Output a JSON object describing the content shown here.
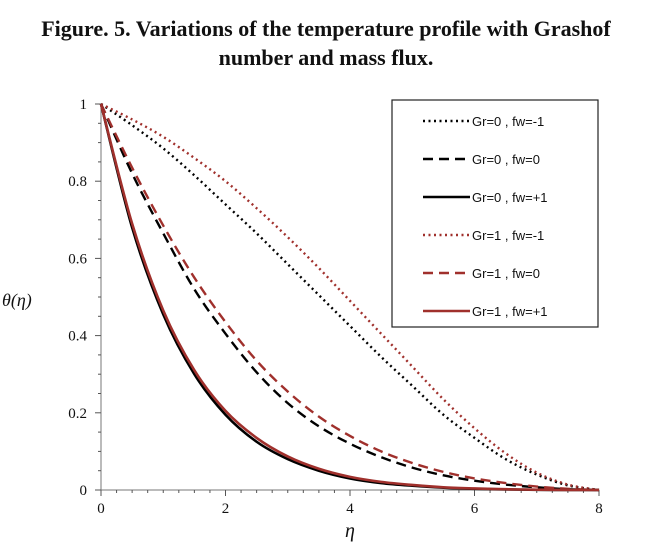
{
  "figure": {
    "caption_line1": "Figure. 5. Variations of the temperature profile with Grashof",
    "caption_line2": "number and mass flux."
  },
  "chart_data": {
    "type": "line",
    "title": "Figure. 5. Variations of the temperature profile with Grashof number and mass flux.",
    "xlabel": "η",
    "ylabel": "θ(η)",
    "xlim": [
      0,
      8
    ],
    "ylim": [
      0,
      1
    ],
    "x_ticks": [
      0,
      2,
      4,
      6,
      8
    ],
    "y_ticks": [
      0,
      0.2,
      0.4,
      0.6,
      0.8,
      1
    ],
    "grid": false,
    "legend_position": "top-right",
    "x": [
      0,
      0.5,
      1,
      1.5,
      2,
      2.5,
      3,
      3.5,
      4,
      4.5,
      5,
      5.5,
      6,
      6.5,
      7,
      7.5,
      8
    ],
    "series": [
      {
        "name": "Gr=0 , fw=-1",
        "color": "#000000",
        "dash": "dotted",
        "values": [
          1,
          0.945,
          0.885,
          0.815,
          0.74,
          0.665,
          0.585,
          0.505,
          0.425,
          0.345,
          0.27,
          0.195,
          0.135,
          0.08,
          0.04,
          0.012,
          0
        ]
      },
      {
        "name": "Gr=0 , fw=0",
        "color": "#000000",
        "dash": "dashed",
        "values": [
          1,
          0.82,
          0.665,
          0.52,
          0.405,
          0.305,
          0.225,
          0.165,
          0.12,
          0.085,
          0.058,
          0.038,
          0.024,
          0.014,
          0.007,
          0.002,
          0
        ]
      },
      {
        "name": "Gr=0 , fw=+1",
        "color": "#000000",
        "dash": "solid",
        "values": [
          1,
          0.68,
          0.455,
          0.3,
          0.195,
          0.125,
          0.08,
          0.05,
          0.03,
          0.018,
          0.011,
          0.006,
          0.003,
          0.0015,
          0.0005,
          0.0001,
          0
        ]
      },
      {
        "name": "Gr=1 , fw=-1",
        "color": "#a0302c",
        "dash": "dotted",
        "values": [
          1,
          0.96,
          0.915,
          0.86,
          0.8,
          0.73,
          0.655,
          0.575,
          0.49,
          0.405,
          0.32,
          0.235,
          0.16,
          0.095,
          0.045,
          0.014,
          0
        ]
      },
      {
        "name": "Gr=1 , fw=0",
        "color": "#a0302c",
        "dash": "dashed",
        "values": [
          1,
          0.835,
          0.685,
          0.55,
          0.435,
          0.335,
          0.255,
          0.19,
          0.14,
          0.1,
          0.07,
          0.047,
          0.03,
          0.018,
          0.009,
          0.003,
          0
        ]
      },
      {
        "name": "Gr=1 , fw=+1",
        "color": "#a0302c",
        "dash": "solid",
        "values": [
          1,
          0.69,
          0.465,
          0.31,
          0.205,
          0.135,
          0.087,
          0.055,
          0.034,
          0.021,
          0.013,
          0.007,
          0.004,
          0.002,
          0.0007,
          0.0002,
          0
        ]
      }
    ]
  }
}
